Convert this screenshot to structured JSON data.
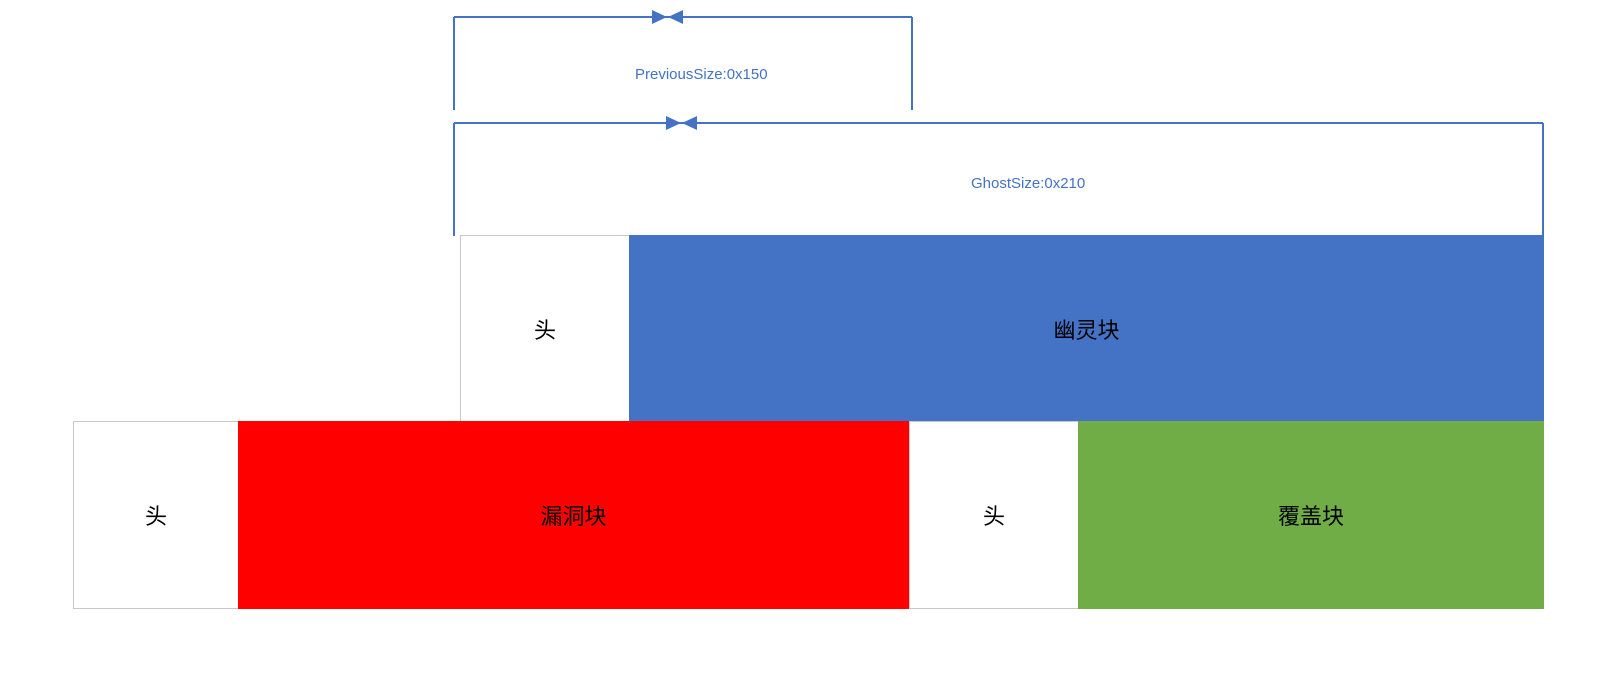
{
  "colors": {
    "dimension_line": "#4472c4",
    "ghost_chunk": "#4472c4",
    "leak_chunk": "#ff0000",
    "cover_chunk": "#70ad47",
    "header": "#ffffff"
  },
  "dimensions": {
    "previous_size": "PreviousSize:0x150",
    "ghost_size": "GhostSize:0x210"
  },
  "top_row": {
    "header_label": "头",
    "ghost_label": "幽灵块"
  },
  "bottom_row": {
    "header1_label": "头",
    "leak_label": "漏洞块",
    "header2_label": "头",
    "cover_label": "覆盖块"
  }
}
